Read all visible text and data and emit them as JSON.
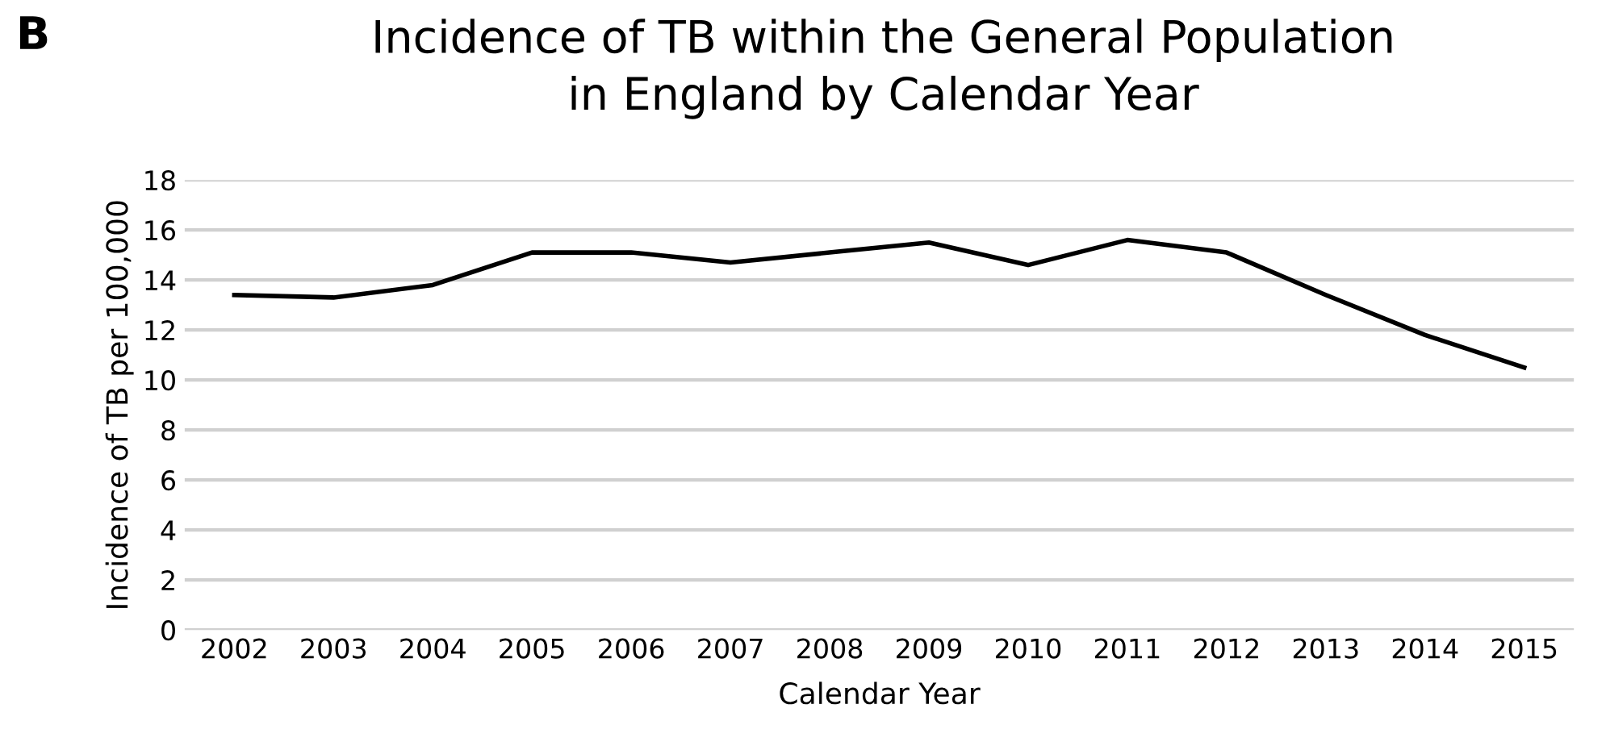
{
  "chart_data": {
    "type": "line",
    "title": "Incidence of TB within the General Population\nin England by Calendar Year",
    "annotations": [
      "B"
    ],
    "xlabel": "Calendar Year",
    "ylabel": "Incidence of TB per 100,000",
    "categories": [
      "2002",
      "2003",
      "2004",
      "2005",
      "2006",
      "2007",
      "2008",
      "2009",
      "2010",
      "2011",
      "2012",
      "2013",
      "2014",
      "2015"
    ],
    "series": [
      {
        "color": "#000000",
        "values": [
          13.4,
          13.3,
          13.8,
          15.1,
          15.1,
          14.7,
          15.1,
          15.5,
          14.6,
          15.6,
          15.1,
          13.4,
          11.8,
          10.5
        ]
      }
    ],
    "ylim": [
      0,
      18
    ],
    "yticks": [
      0,
      2,
      4,
      6,
      8,
      10,
      12,
      14,
      16,
      18
    ],
    "grid": "y",
    "legend": false
  }
}
